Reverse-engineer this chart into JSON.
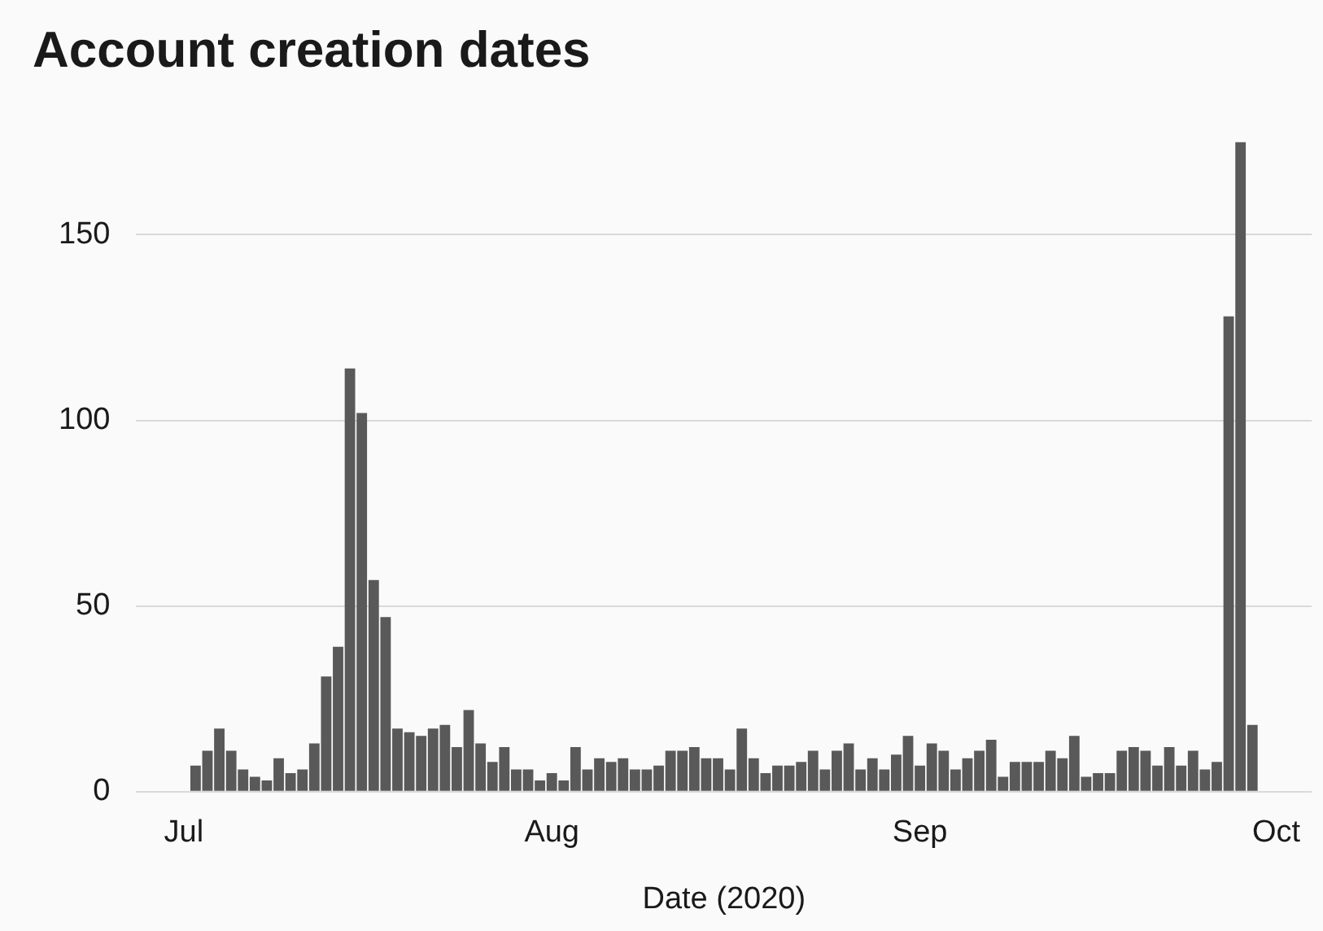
{
  "chart_data": {
    "type": "bar",
    "title": "Account creation dates",
    "xlabel": "Date (2020)",
    "x": [
      "2020-07-02",
      "2020-07-03",
      "2020-07-04",
      "2020-07-05",
      "2020-07-06",
      "2020-07-07",
      "2020-07-08",
      "2020-07-09",
      "2020-07-10",
      "2020-07-11",
      "2020-07-12",
      "2020-07-13",
      "2020-07-14",
      "2020-07-15",
      "2020-07-16",
      "2020-07-17",
      "2020-07-18",
      "2020-07-19",
      "2020-07-20",
      "2020-07-21",
      "2020-07-22",
      "2020-07-23",
      "2020-07-24",
      "2020-07-25",
      "2020-07-26",
      "2020-07-27",
      "2020-07-28",
      "2020-07-29",
      "2020-07-30",
      "2020-07-31",
      "2020-08-01",
      "2020-08-02",
      "2020-08-03",
      "2020-08-04",
      "2020-08-05",
      "2020-08-06",
      "2020-08-07",
      "2020-08-08",
      "2020-08-09",
      "2020-08-10",
      "2020-08-11",
      "2020-08-12",
      "2020-08-13",
      "2020-08-14",
      "2020-08-15",
      "2020-08-16",
      "2020-08-17",
      "2020-08-18",
      "2020-08-19",
      "2020-08-20",
      "2020-08-21",
      "2020-08-22",
      "2020-08-23",
      "2020-08-24",
      "2020-08-25",
      "2020-08-26",
      "2020-08-27",
      "2020-08-28",
      "2020-08-29",
      "2020-08-30",
      "2020-08-31",
      "2020-09-01",
      "2020-09-02",
      "2020-09-03",
      "2020-09-04",
      "2020-09-05",
      "2020-09-06",
      "2020-09-07",
      "2020-09-08",
      "2020-09-09",
      "2020-09-10",
      "2020-09-11",
      "2020-09-12",
      "2020-09-13",
      "2020-09-14",
      "2020-09-15",
      "2020-09-16",
      "2020-09-17",
      "2020-09-18",
      "2020-09-19",
      "2020-09-20",
      "2020-09-21",
      "2020-09-22",
      "2020-09-23",
      "2020-09-24",
      "2020-09-25",
      "2020-09-26",
      "2020-09-27",
      "2020-09-28",
      "2020-09-29"
    ],
    "values": [
      7,
      11,
      17,
      11,
      6,
      4,
      3,
      9,
      5,
      6,
      13,
      31,
      39,
      114,
      102,
      57,
      47,
      17,
      16,
      15,
      17,
      18,
      12,
      22,
      13,
      8,
      12,
      6,
      6,
      3,
      5,
      3,
      12,
      6,
      9,
      8,
      9,
      6,
      6,
      7,
      11,
      11,
      12,
      9,
      9,
      6,
      17,
      9,
      5,
      7,
      7,
      8,
      11,
      6,
      11,
      13,
      6,
      9,
      6,
      10,
      15,
      7,
      13,
      11,
      6,
      9,
      11,
      14,
      4,
      8,
      8,
      8,
      11,
      9,
      15,
      4,
      5,
      5,
      11,
      12,
      11,
      7,
      12,
      7,
      11,
      6,
      8,
      128,
      175,
      18
    ],
    "color": "#595959",
    "xlim": [
      "2020-06-27",
      "2020-10-04"
    ],
    "xticks": [
      {
        "value": "2020-07-01",
        "label": "Jul"
      },
      {
        "value": "2020-08-01",
        "label": "Aug"
      },
      {
        "value": "2020-09-01",
        "label": "Sep"
      },
      {
        "value": "2020-10-01",
        "label": "Oct"
      }
    ],
    "ylim": [
      0,
      175
    ],
    "yticks": [
      0,
      50,
      100,
      150
    ],
    "grid": "y",
    "legend": false
  }
}
